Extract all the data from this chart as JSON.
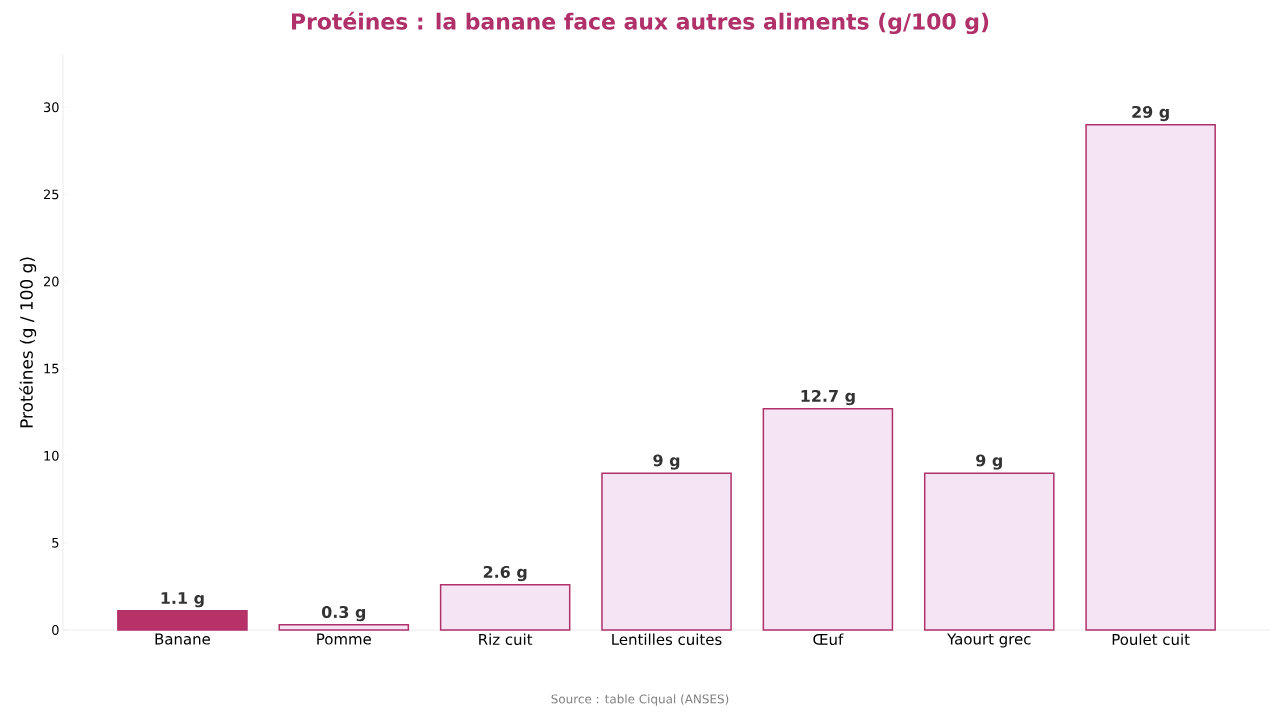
{
  "chart_data": {
    "type": "bar",
    "title": "Protéines : la banane face aux autres aliments (g/100 g)",
    "ylabel": "Protéines (g / 100 g)",
    "categories": [
      "Banane",
      "Pomme",
      "Riz cuit",
      "Lentilles cuites",
      "Œuf",
      "Yaourt grec",
      "Poulet cuit"
    ],
    "values": [
      1.1,
      0.3,
      2.6,
      9,
      12.7,
      9,
      29
    ],
    "value_labels": [
      "1.1 g",
      "0.3 g",
      "2.6 g",
      "9 g",
      "12.7 g",
      "9 g",
      "29 g"
    ],
    "colors": [
      "#b83268",
      "#f5e4f3",
      "#f5e4f3",
      "#f5e4f3",
      "#f5e4f3",
      "#f5e4f3",
      "#f5e4f3"
    ],
    "ylim": [
      0,
      33
    ],
    "yticks": [
      0,
      5,
      10,
      15,
      20,
      25,
      30
    ],
    "grid": false,
    "annotations": [
      "Source : table Ciqual (ANSES)"
    ]
  }
}
